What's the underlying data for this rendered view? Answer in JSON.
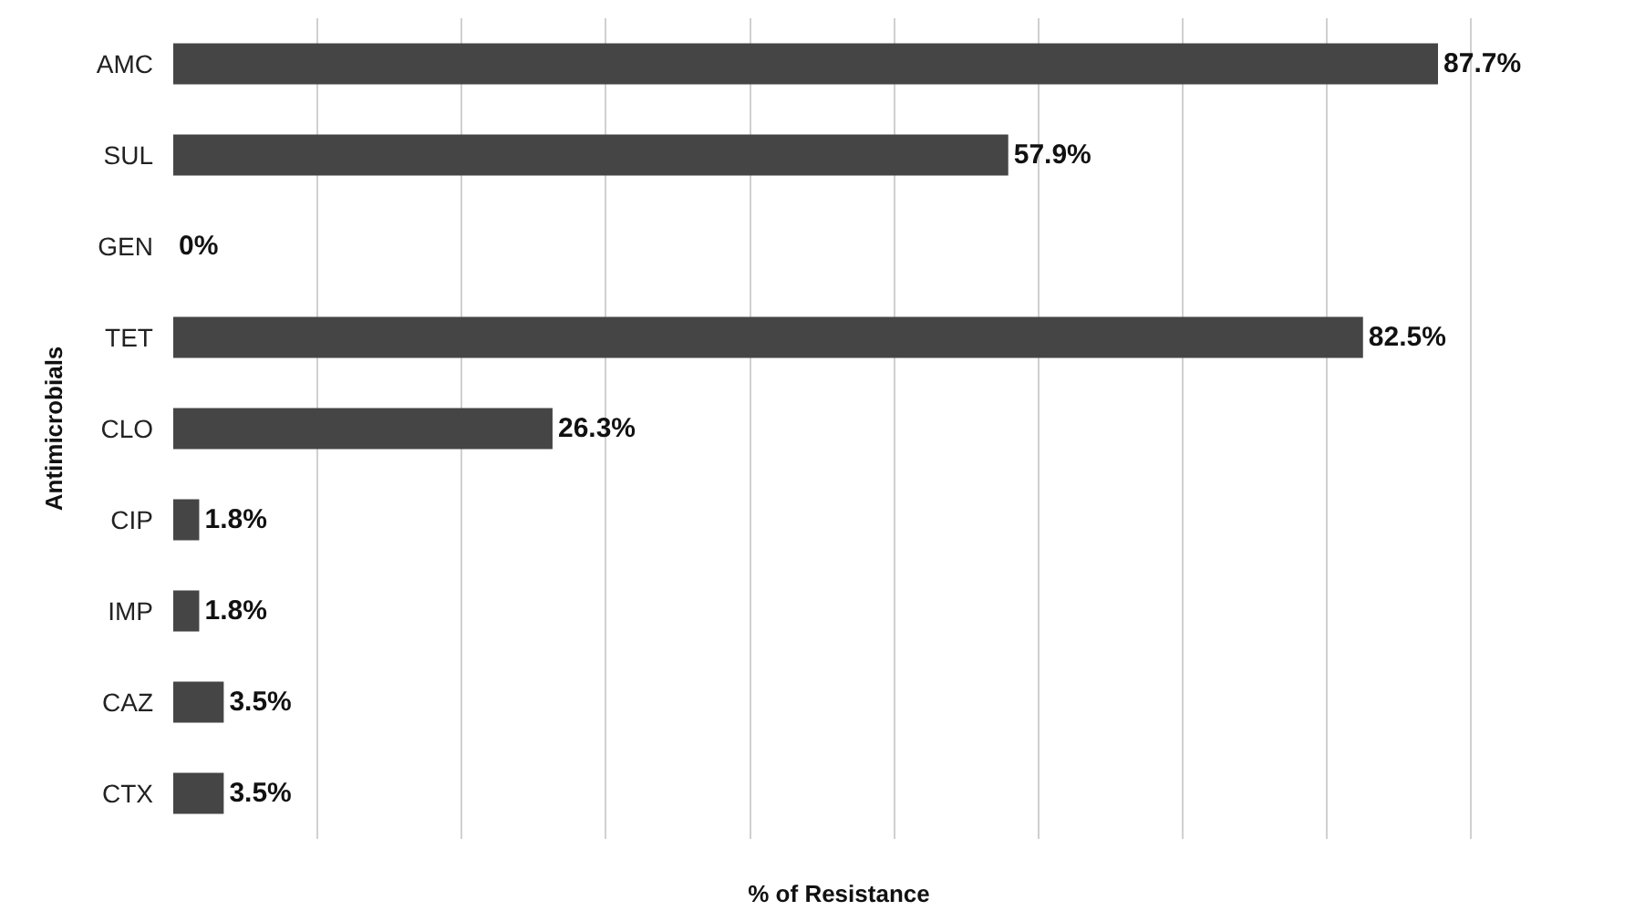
{
  "chart_data": {
    "type": "bar",
    "orientation": "horizontal",
    "xlabel": "% of Resistance",
    "ylabel": "Antimicrobials",
    "categories": [
      "AMC",
      "SUL",
      "GEN",
      "TET",
      "CLO",
      "CIP",
      "IMP",
      "CAZ",
      "CTX"
    ],
    "values": [
      87.7,
      57.9,
      0,
      82.5,
      26.3,
      1.8,
      1.8,
      3.5,
      3.5
    ],
    "value_labels": [
      "87.7%",
      "57.9%",
      "0%",
      "82.5%",
      "26.3%",
      "1.8%",
      "1.8%",
      "3.5%",
      "3.5%"
    ],
    "color": "#454545",
    "grid": "x",
    "tick_labels": "y",
    "legend": false
  }
}
